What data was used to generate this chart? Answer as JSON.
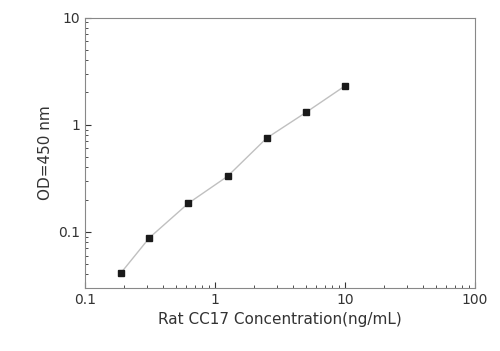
{
  "x": [
    0.188,
    0.313,
    0.625,
    1.25,
    2.5,
    5.0,
    10.0
  ],
  "y": [
    0.041,
    0.088,
    0.185,
    0.33,
    0.75,
    1.3,
    2.3
  ],
  "xlabel": "Rat CC17 Concentration(ng/mL)",
  "ylabel": "OD=450 nm",
  "xlim": [
    0.1,
    100
  ],
  "ylim": [
    0.03,
    10
  ],
  "line_color": "#c0c0c0",
  "marker_color": "#1a1a1a",
  "marker": "s",
  "marker_size": 5,
  "line_width": 1.0,
  "font_size": 10,
  "label_font_size": 11,
  "background_color": "#ffffff",
  "tick_color": "#333333",
  "spine_color": "#888888"
}
